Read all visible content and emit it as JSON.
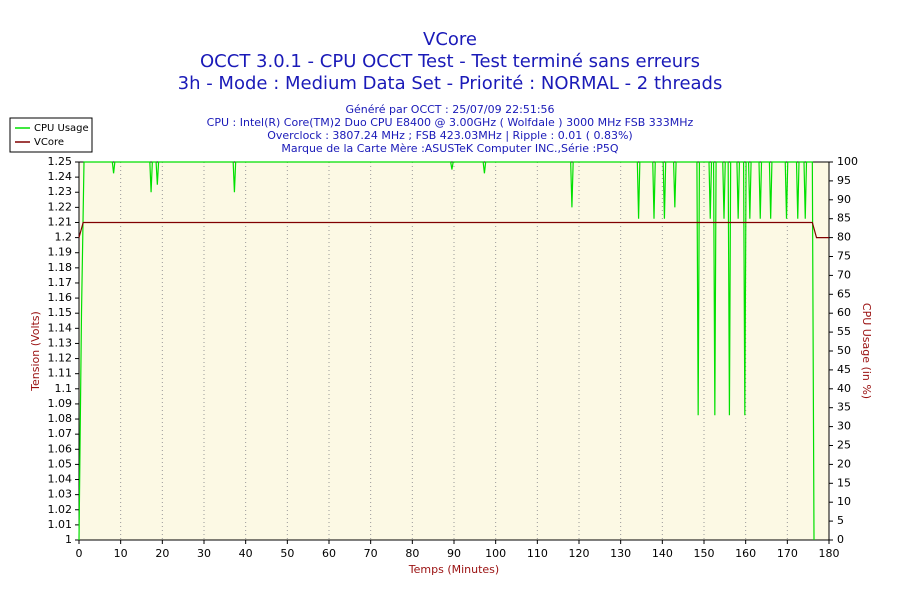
{
  "chart_data": {
    "type": "line",
    "title": "VCore",
    "subtitle": [
      "OCCT 3.0.1 - CPU OCCT Test - Test terminé sans erreurs",
      "3h - Mode : Medium Data Set - Priorité : NORMAL - 2 threads"
    ],
    "notes": [
      "Généré par OCCT : 25/07/09 22:51:56",
      "CPU : Intel(R) Core(TM)2 Duo CPU E8400 @ 3.00GHz ( Wolfdale ) 3000 MHz FSB 333MHz",
      "Overclock : 3807.24 MHz ; FSB 423.03MHz | Ripple : 0.01 ( 0.83%)",
      "Marque de la Carte Mère :ASUSTeK Computer INC.,Série :P5Q"
    ],
    "x_label": "Temps (Minutes)",
    "y_label": "Tension (Volts)",
    "y2_label": "CPU Usage (in %)",
    "xlim": [
      0,
      180
    ],
    "xticks": [
      0,
      10,
      20,
      30,
      40,
      50,
      60,
      70,
      80,
      90,
      100,
      110,
      120,
      130,
      140,
      150,
      160,
      170,
      180
    ],
    "ylim": [
      1,
      1.25
    ],
    "yticks": [
      1,
      1.01,
      1.02,
      1.03,
      1.04,
      1.05,
      1.06,
      1.07,
      1.08,
      1.09,
      1.1,
      1.11,
      1.12,
      1.13,
      1.14,
      1.15,
      1.16,
      1.17,
      1.18,
      1.19,
      1.2,
      1.21,
      1.22,
      1.23,
      1.24,
      1.25
    ],
    "y2lim": [
      0,
      100
    ],
    "y2ticks": [
      0,
      5,
      10,
      15,
      20,
      25,
      30,
      35,
      40,
      45,
      50,
      55,
      60,
      65,
      70,
      75,
      80,
      85,
      90,
      95,
      100
    ],
    "grid": true,
    "legend": "top-left",
    "series": [
      {
        "name": "CPU Usage",
        "color": "#00e000",
        "axis": "y2",
        "x": [
          0,
          0.6,
          1.2,
          8.0,
          8.3,
          8.6,
          17.0,
          17.3,
          17.6,
          18.5,
          18.8,
          19.1,
          37.0,
          37.3,
          37.6,
          89.2,
          89.5,
          89.8,
          97.0,
          97.3,
          97.6,
          118.0,
          118.3,
          118.6,
          134.0,
          134.3,
          134.6,
          137.7,
          138.0,
          138.3,
          140.2,
          140.5,
          140.8,
          142.7,
          143.0,
          143.3,
          148.3,
          148.6,
          148.9,
          151.2,
          151.5,
          151.8,
          152.3,
          152.6,
          152.9,
          154.5,
          154.8,
          155.1,
          155.8,
          156.1,
          156.4,
          157.9,
          158.2,
          158.5,
          159.5,
          159.8,
          160.1,
          160.7,
          161.0,
          161.3,
          163.2,
          163.5,
          163.8,
          165.7,
          166.0,
          166.3,
          169.5,
          169.8,
          170.1,
          172.2,
          172.5,
          172.8,
          174.0,
          174.3,
          174.6,
          176.0,
          176.4
        ],
        "values": [
          0,
          60,
          100,
          100,
          97,
          100,
          100,
          92,
          100,
          100,
          94,
          100,
          100,
          92,
          100,
          100,
          98,
          100,
          100,
          97,
          100,
          100,
          88,
          100,
          100,
          85,
          100,
          100,
          85,
          100,
          100,
          85,
          100,
          100,
          88,
          100,
          100,
          33,
          100,
          100,
          85,
          100,
          100,
          33,
          100,
          100,
          85,
          100,
          100,
          33,
          100,
          100,
          85,
          100,
          100,
          33,
          100,
          100,
          85,
          100,
          100,
          85,
          100,
          100,
          85,
          100,
          100,
          85,
          100,
          100,
          85,
          100,
          100,
          85,
          100,
          100,
          0
        ]
      },
      {
        "name": "VCore",
        "color": "#800000",
        "x": [
          0,
          1,
          176,
          177,
          180
        ],
        "values": [
          1.2,
          1.21,
          1.21,
          1.2,
          1.2
        ]
      }
    ]
  }
}
